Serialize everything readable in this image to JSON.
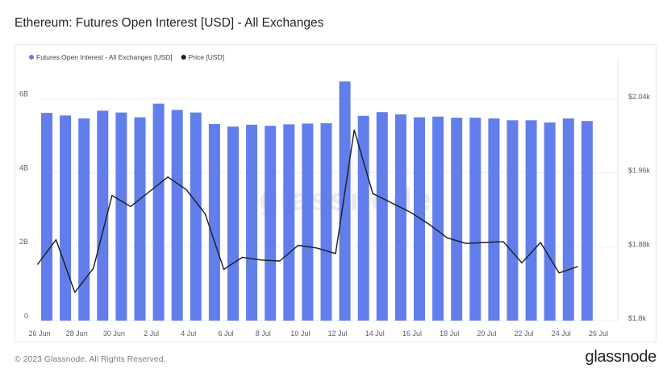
{
  "title": "Ethereum: Futures Open Interest [USD] - All Exchanges",
  "footer": {
    "copyright": "© 2023 Glassnode. All Rights Reserved.",
    "brand": "glassnode"
  },
  "watermark": "glassnode",
  "colors": {
    "bar": "#627eea",
    "line": "#1b1b1b",
    "grid": "#eceef2",
    "text": "#5b6068"
  },
  "chart_data": {
    "type": "bar",
    "categories": [
      "Jun 26",
      "Jun 27",
      "Jun 28",
      "Jun 29",
      "Jun 30",
      "Jul 1",
      "Jul 2",
      "Jul 3",
      "Jul 4",
      "Jul 5",
      "Jul 6",
      "Jul 7",
      "Jul 8",
      "Jul 9",
      "Jul 10",
      "Jul 11",
      "Jul 12",
      "Jul 13",
      "Jul 14",
      "Jul 15",
      "Jul 16",
      "Jul 17",
      "Jul 18",
      "Jul 19",
      "Jul 20",
      "Jul 21",
      "Jul 22",
      "Jul 23",
      "Jul 24",
      "Jul 25"
    ],
    "series": [
      {
        "name": "Futures Open Interest - All Exchanges [USD]",
        "type": "bar",
        "axis": "left",
        "values": [
          5.62,
          5.55,
          5.47,
          5.68,
          5.63,
          5.5,
          5.87,
          5.7,
          5.63,
          5.32,
          5.25,
          5.3,
          5.27,
          5.31,
          5.33,
          5.34,
          6.47,
          5.54,
          5.64,
          5.58,
          5.5,
          5.52,
          5.49,
          5.49,
          5.47,
          5.42,
          5.42,
          5.36,
          5.47,
          5.4
        ]
      },
      {
        "name": "Price [USD]",
        "type": "line",
        "axis": "right",
        "x_offset": -0.5,
        "values": [
          1858,
          1885,
          1828,
          1854,
          1933,
          1921,
          1937,
          1953,
          1939,
          1913,
          1853,
          1866,
          1863,
          1862,
          1879,
          1876,
          1870,
          2004,
          1935,
          1925,
          1915,
          1902,
          1887,
          1881,
          1882,
          1883,
          1860,
          1882,
          1849,
          1856
        ]
      }
    ],
    "x_tick_labels": [
      "26 Jun",
      "28 Jun",
      "30 Jun",
      "2 Jul",
      "4 Jul",
      "6 Jul",
      "8 Jul",
      "10 Jul",
      "12 Jul",
      "14 Jul",
      "16 Jul",
      "18 Jul",
      "20 Jul",
      "22 Jul",
      "24 Jul",
      "26 Jul"
    ],
    "y_left": {
      "ticks": [
        "0",
        "2B",
        "4B",
        "6B"
      ],
      "values": [
        0,
        2,
        4,
        6
      ],
      "range": [
        0,
        6.8
      ],
      "unit": "B"
    },
    "y_right": {
      "ticks": [
        "$1.8k",
        "$1.88k",
        "$1.96k",
        "$2.04k"
      ],
      "values": [
        1800,
        1880,
        1960,
        2040
      ],
      "range": [
        1800,
        2040
      ]
    },
    "grid": true,
    "legend_position": "top-left"
  }
}
